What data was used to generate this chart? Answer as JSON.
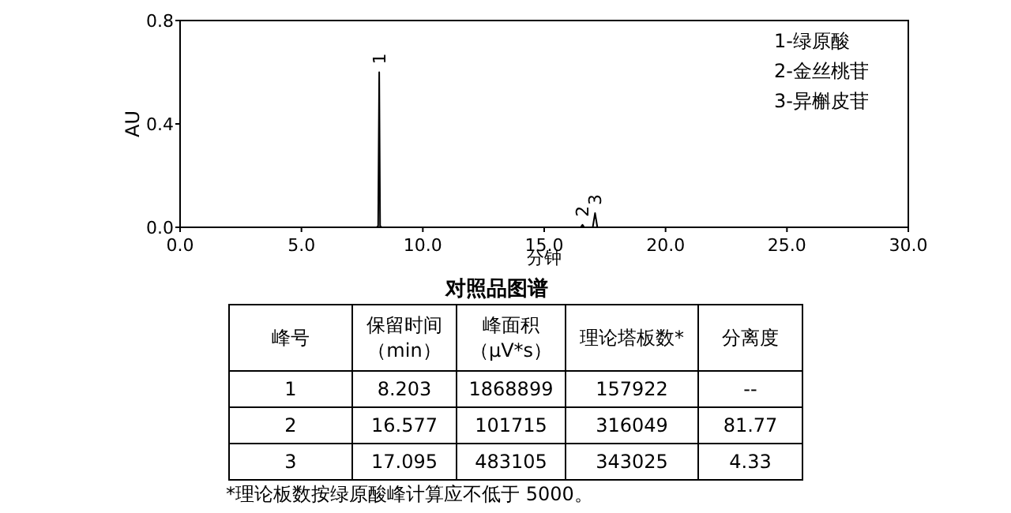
{
  "chart_data": [
    {
      "type": "line",
      "title": "对照品图谱",
      "xlabel": "分钟",
      "ylabel": "AU",
      "grid": false,
      "marker": "none",
      "line_style": "solid",
      "x": [
        0,
        8.1,
        8.16,
        8.203,
        8.24,
        8.3,
        16.5,
        16.577,
        16.65,
        17.0,
        17.095,
        17.19,
        30
      ],
      "series": [
        {
          "color": "#000000",
          "values": [
            0,
            0,
            0.005,
            0.6,
            0.005,
            0,
            0,
            0.01,
            0,
            0,
            0.055,
            0,
            0
          ]
        }
      ],
      "xlim": [
        0,
        30
      ],
      "xticks": [
        {
          "value": 0,
          "label": "0.0"
        },
        {
          "value": 5,
          "label": "5.0"
        },
        {
          "value": 10,
          "label": "10.0"
        },
        {
          "value": 15,
          "label": "15.0"
        },
        {
          "value": 20,
          "label": "20.0"
        },
        {
          "value": 25,
          "label": "25.0"
        },
        {
          "value": 30,
          "label": "30.0"
        }
      ],
      "ylim": [
        0,
        0.8
      ],
      "yticks": [
        {
          "value": 0,
          "label": "0.0"
        },
        {
          "value": 0.4,
          "label": "0.4"
        },
        {
          "value": 0.8,
          "label": "0.8"
        }
      ],
      "annotations": [
        {
          "text": "1",
          "x": 8.203,
          "y": 0.6
        },
        {
          "text": "2",
          "x": 16.577,
          "y": 0.01
        },
        {
          "text": "3",
          "x": 17.095,
          "y": 0.055
        },
        "1-绿原酸",
        "2-金丝桃苷",
        "3-异槲皮苷"
      ]
    },
    {
      "type": "other",
      "categories": [
        "峰号",
        "保留时间（min）",
        "峰面积（μV*s）",
        "理论塔板数*",
        "分离度"
      ],
      "annotations": [
        "1",
        "8.203",
        "1868899",
        "157922",
        "--",
        "2",
        "16.577",
        "101715",
        "316049",
        "81.77",
        "3",
        "17.095",
        "483105",
        "343025",
        "4.33",
        "*理论板数按绿原酸峰计算应不低于 5000。"
      ]
    }
  ]
}
